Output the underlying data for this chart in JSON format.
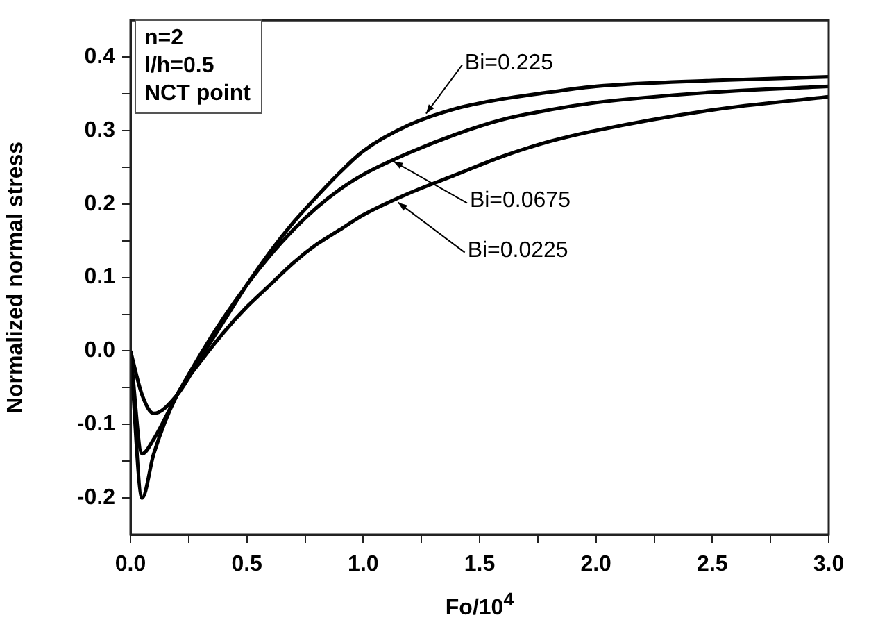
{
  "chart_data": {
    "type": "line",
    "xlabel": "Fo/10$^{4}$",
    "ylabel": "Normalized normal stress",
    "xlim": [
      0,
      3.0
    ],
    "ylim": [
      -0.25,
      0.45
    ],
    "xticks": [
      {
        "value": 0,
        "label": "0.0"
      },
      {
        "value": 0.25,
        "label": null
      },
      {
        "value": 0.5,
        "label": "0.5"
      },
      {
        "value": 0.75,
        "label": null
      },
      {
        "value": 1.0,
        "label": "1.0"
      },
      {
        "value": 1.25,
        "label": null
      },
      {
        "value": 1.5,
        "label": "1.5"
      },
      {
        "value": 1.75,
        "label": null
      },
      {
        "value": 2.0,
        "label": "2.0"
      },
      {
        "value": 2.25,
        "label": null
      },
      {
        "value": 2.5,
        "label": "2.5"
      },
      {
        "value": 2.75,
        "label": null
      },
      {
        "value": 3.0,
        "label": "3.0"
      }
    ],
    "yticks": [
      {
        "value": -0.2,
        "label": "-0.2"
      },
      {
        "value": -0.15,
        "label": null
      },
      {
        "value": -0.1,
        "label": "-0.1"
      },
      {
        "value": -0.05,
        "label": null
      },
      {
        "value": 0,
        "label": "0.0"
      },
      {
        "value": 0.05,
        "label": null
      },
      {
        "value": 0.1,
        "label": "0.1"
      },
      {
        "value": 0.15,
        "label": null
      },
      {
        "value": 0.2,
        "label": "0.2"
      },
      {
        "value": 0.25,
        "label": null
      },
      {
        "value": 0.3,
        "label": "0.3"
      },
      {
        "value": 0.35,
        "label": null
      },
      {
        "value": 0.4,
        "label": "0.4"
      }
    ],
    "x": [
      0,
      0.05,
      0.1,
      0.2,
      0.3,
      0.4,
      0.5,
      0.6,
      0.7,
      0.8,
      0.9,
      1.0,
      1.2,
      1.4,
      1.6,
      1.8,
      2.0,
      2.5,
      3.0
    ],
    "series": [
      {
        "color": "#000000",
        "values": [
          0,
          -0.06,
          -0.085,
          -0.06,
          -0.01,
          0.04,
          0.09,
          0.135,
          0.175,
          0.21,
          0.243,
          0.272,
          0.308,
          0.33,
          0.343,
          0.352,
          0.36,
          0.368,
          0.373
        ]
      },
      {
        "color": "#000000",
        "values": [
          0,
          -0.14,
          -0.12,
          -0.06,
          -0.005,
          0.045,
          0.09,
          0.13,
          0.165,
          0.195,
          0.22,
          0.24,
          0.27,
          0.295,
          0.315,
          0.328,
          0.338,
          0.352,
          0.36
        ]
      },
      {
        "color": "#000000",
        "values": [
          0,
          -0.2,
          -0.14,
          -0.06,
          -0.015,
          0.025,
          0.06,
          0.09,
          0.12,
          0.145,
          0.165,
          0.185,
          0.215,
          0.24,
          0.265,
          0.285,
          0.3,
          0.328,
          0.346
        ]
      }
    ],
    "annotations": [
      {
        "text": "Bi=0.225",
        "x": 1.27,
        "y": 0.323
      },
      {
        "text": "Bi=0.0675",
        "x": 1.13,
        "y": 0.258
      },
      {
        "text": "Bi=0.0225",
        "x": 1.15,
        "y": 0.202
      },
      "n=2",
      "l/h=0.5",
      "NCT point"
    ],
    "grid": false,
    "legend": false,
    "marker": "none",
    "line_style": "solid"
  }
}
